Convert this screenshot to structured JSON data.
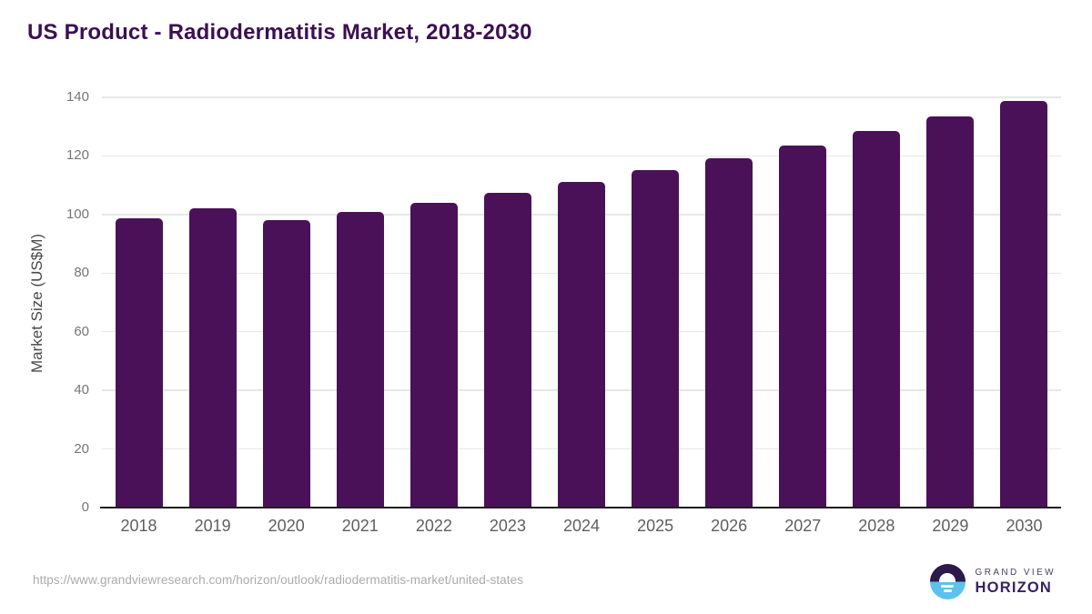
{
  "title": "US Product - Radiodermatitis Market, 2018-2030",
  "footer": {
    "source_url": "https://www.grandviewresearch.com/horizon/outlook/radiodermatitis-market/united-states",
    "logo": {
      "line1": "GRAND VIEW",
      "line2": "HORIZON"
    }
  },
  "colors": {
    "bar": "#4a1158",
    "title_text": "#3a1053",
    "axis_line": "#1f1f1f",
    "gridline": "#e7e7e7",
    "tick_label": "#757575",
    "x_label": "#5f5f5f",
    "axis_title": "#4a4a4a",
    "url_text": "#ababab",
    "logo_dark": "#2c1a4a",
    "logo_blue": "#5bc2ee",
    "logo_text_sub": "#4b4160",
    "logo_text_main": "#362364"
  },
  "chart_data": {
    "type": "bar",
    "title": "US Product - Radiodermatitis Market, 2018-2030",
    "categories": [
      "2018",
      "2019",
      "2020",
      "2021",
      "2022",
      "2023",
      "2024",
      "2025",
      "2026",
      "2027",
      "2028",
      "2029",
      "2030"
    ],
    "values": [
      98.6,
      102.2,
      98.0,
      101.0,
      104.1,
      107.4,
      111.2,
      115.2,
      119.3,
      123.5,
      128.6,
      133.6,
      138.8
    ],
    "xlabel": "",
    "ylabel": "Market Size (US$M)",
    "ylim": [
      0,
      140
    ],
    "yticks": [
      0,
      20,
      40,
      60,
      80,
      100,
      120,
      140
    ],
    "grid": true,
    "legend": false,
    "bar_color": "#4a1158"
  }
}
